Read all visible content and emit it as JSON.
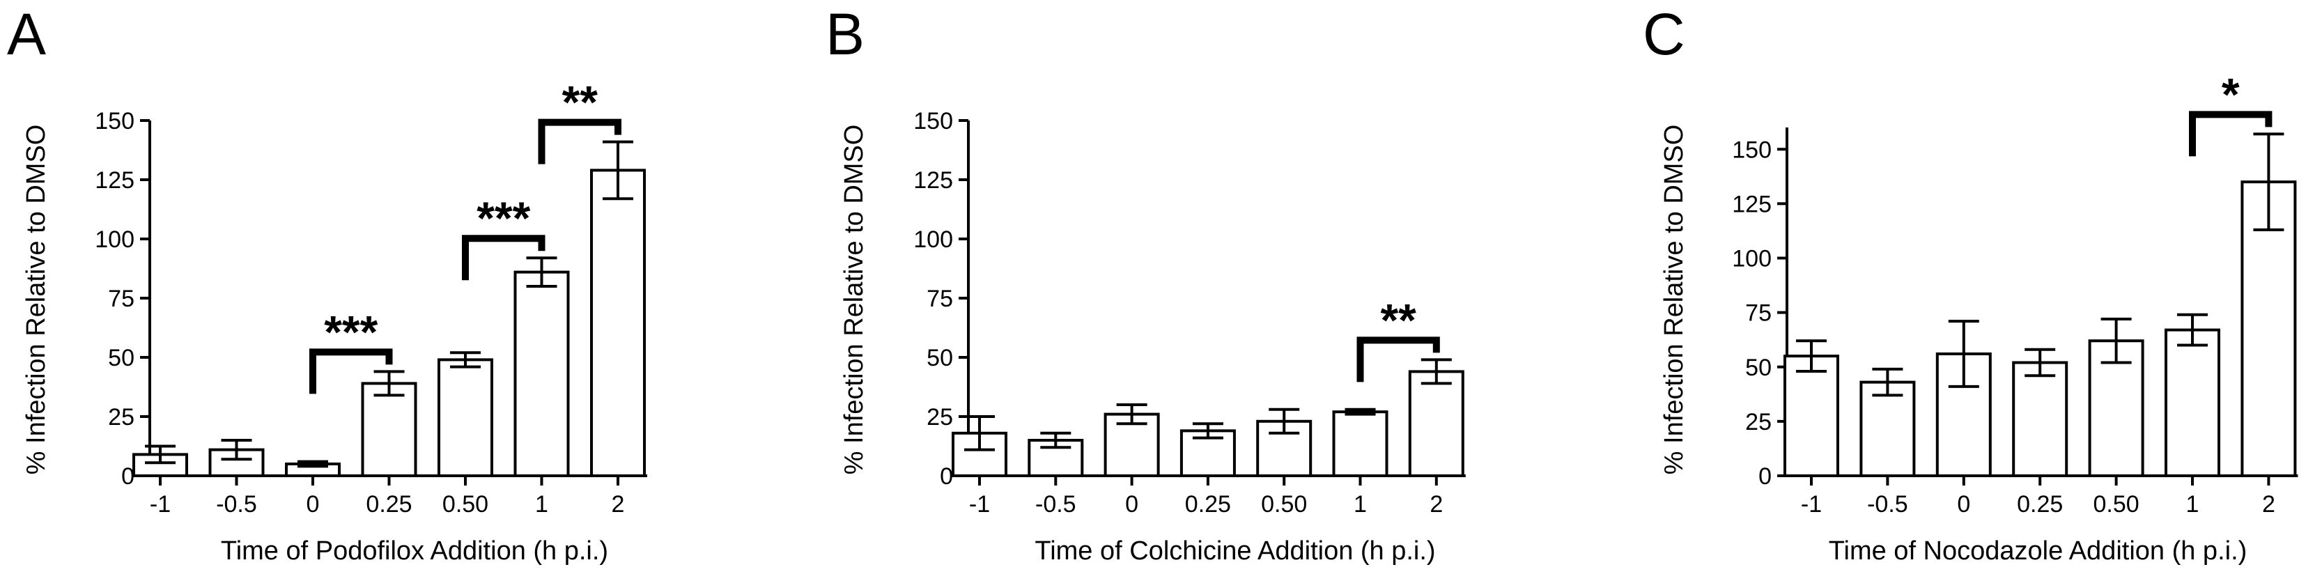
{
  "chart_data": [
    {
      "panel": "A",
      "type": "bar",
      "categories": [
        "-1",
        "-0.5",
        "0",
        "0.25",
        "0.50",
        "1",
        "2"
      ],
      "values": [
        9,
        11,
        5,
        39,
        49,
        86,
        129
      ],
      "errors": [
        3.5,
        4,
        1,
        5,
        3,
        6,
        12
      ],
      "xlabel": "Time of Podofilox Addition (h p.i.)",
      "ylabel": "% Infection Relative to DMSO",
      "ylim": [
        0,
        150
      ],
      "yticks": [
        "0",
        "25",
        "50",
        "75",
        "100",
        "125",
        "150"
      ],
      "significance": [
        {
          "from": 2,
          "to": 3,
          "label": "***"
        },
        {
          "from": 4,
          "to": 5,
          "label": "***"
        },
        {
          "from": 5,
          "to": 6,
          "label": "**"
        }
      ]
    },
    {
      "panel": "B",
      "type": "bar",
      "categories": [
        "-1",
        "-0.5",
        "0",
        "0.25",
        "0.50",
        "1",
        "2"
      ],
      "values": [
        18,
        15,
        26,
        19,
        23,
        27,
        44
      ],
      "errors": [
        7,
        3,
        4,
        3,
        5,
        1,
        5
      ],
      "xlabel": "Time of Colchicine Addition (h p.i.)",
      "ylabel": "% Infection Relative to DMSO",
      "ylim": [
        0,
        150
      ],
      "yticks": [
        "0",
        "25",
        "50",
        "75",
        "100",
        "125",
        "150"
      ],
      "significance": [
        {
          "from": 5,
          "to": 6,
          "label": "**"
        }
      ]
    },
    {
      "panel": "C",
      "type": "bar",
      "categories": [
        "-1",
        "-0.5",
        "0",
        "0.25",
        "0.50",
        "1",
        "2"
      ],
      "values": [
        55,
        43,
        56,
        52,
        62,
        67,
        135
      ],
      "errors": [
        7,
        6,
        15,
        6,
        10,
        7,
        22
      ],
      "xlabel": "Time of Nocodazole Addition (h p.i.)",
      "ylabel": "% Infection Relative to DMSO",
      "ylim": [
        0,
        160
      ],
      "yticks": [
        "0",
        "25",
        "50",
        "75",
        "100",
        "125",
        "150"
      ],
      "significance": [
        {
          "from": 5,
          "to": 6,
          "label": "*"
        }
      ]
    }
  ]
}
